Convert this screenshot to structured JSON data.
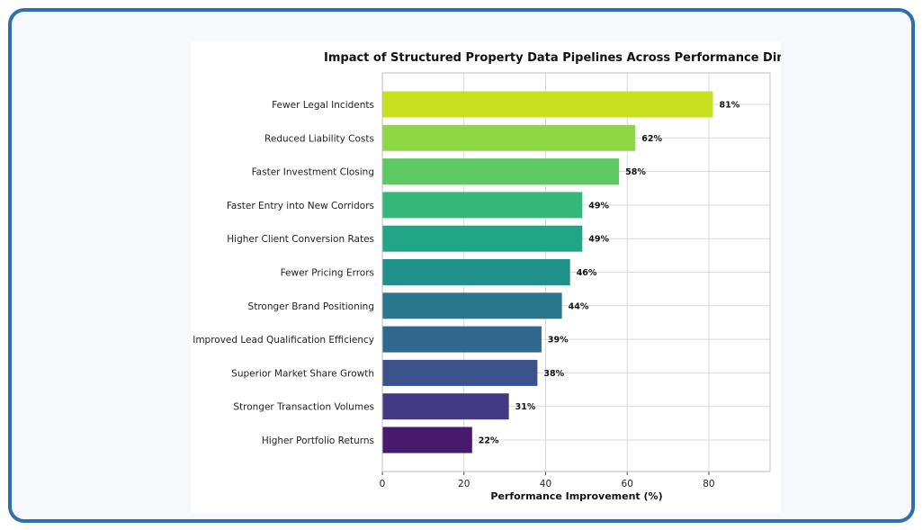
{
  "chart_data": {
    "type": "bar",
    "orientation": "horizontal",
    "title": "Impact of Structured Property Data Pipelines Across Performance Dim",
    "xlabel": "Performance Improvement (%)",
    "ylabel": "",
    "xlim": [
      0,
      95
    ],
    "xticks": [
      0,
      20,
      40,
      60,
      80
    ],
    "grid": true,
    "categories": [
      "Fewer Legal Incidents",
      "Reduced Liability Costs",
      "Faster Investment Closing",
      "Faster Entry into New Corridors",
      "Higher Client Conversion Rates",
      "Fewer Pricing Errors",
      "Stronger Brand Positioning",
      "Improved Lead Qualification Efficiency",
      "Superior Market Share Growth",
      "Stronger Transaction Volumes",
      "Higher Portfolio Returns"
    ],
    "values": [
      81,
      62,
      58,
      49,
      49,
      46,
      44,
      39,
      38,
      31,
      22
    ],
    "value_labels": [
      "81%",
      "62%",
      "58%",
      "49%",
      "49%",
      "46%",
      "44%",
      "39%",
      "38%",
      "31%",
      "22%"
    ],
    "colors": [
      "#c7e01f",
      "#8fd744",
      "#5ec962",
      "#35b779",
      "#21a585",
      "#21918c",
      "#2a788e",
      "#31688e",
      "#3b528b",
      "#443983",
      "#481a6c"
    ]
  }
}
